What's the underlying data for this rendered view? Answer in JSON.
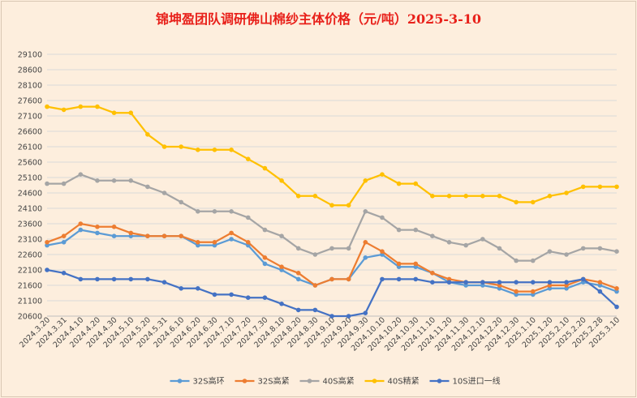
{
  "chart_data": {
    "type": "line",
    "title": "锦坤盈团队调研佛山棉纱主体价格（元/吨）2025-3-10",
    "y_ticks": [
      20600,
      21100,
      21600,
      22100,
      22600,
      23100,
      23600,
      24100,
      24600,
      25100,
      25600,
      26100,
      26600,
      27100,
      27600,
      28100,
      28600,
      29100
    ],
    "ylim": [
      20600,
      29100
    ],
    "grid": "horizontal",
    "legend_position": "bottom",
    "categories": [
      "2024.3.20",
      "2024.3.31",
      "2024.4.10",
      "2024.4.20",
      "2024.4.30",
      "2024.5.10",
      "2024.5.20",
      "2024.5.31",
      "2024.6.10",
      "2024.6.20",
      "2024.6.30",
      "2024.7.10",
      "2024.7.20",
      "2024.7.30",
      "2024.8.10",
      "2024.8.20",
      "2024.8.30",
      "2024.9.10",
      "2024.9.20",
      "2024.9.30",
      "2024.10.10",
      "2024.10.20",
      "2024.10.30",
      "2024.11.10",
      "2024.11.20",
      "2024.11.30",
      "2024.12.10",
      "2024.12.20",
      "2024.12.30",
      "2025.1.10",
      "2025.1.20",
      "2025.2.10",
      "2025.2.20",
      "2025.2.28",
      "2025.3.10"
    ],
    "series": [
      {
        "name": "32S高环",
        "color": "#5b9bd5",
        "values": [
          22900,
          23000,
          23400,
          23300,
          23200,
          23200,
          23200,
          23200,
          23200,
          22900,
          22900,
          23100,
          22900,
          22300,
          22100,
          21800,
          21600,
          21800,
          21800,
          22500,
          22600,
          22200,
          22200,
          22000,
          21700,
          21600,
          21600,
          21500,
          21300,
          21300,
          21500,
          21500,
          21700,
          21600,
          21400
        ]
      },
      {
        "name": "32S高紧",
        "color": "#ed7d31",
        "values": [
          23000,
          23200,
          23600,
          23500,
          23500,
          23300,
          23200,
          23200,
          23200,
          23000,
          23000,
          23300,
          23000,
          22500,
          22200,
          22000,
          21600,
          21800,
          21800,
          23000,
          22700,
          22300,
          22300,
          22000,
          21800,
          21700,
          21700,
          21600,
          21400,
          21400,
          21600,
          21600,
          21800,
          21700,
          21500
        ]
      },
      {
        "name": "40S高紧",
        "color": "#a5a5a5",
        "values": [
          24900,
          24900,
          25200,
          25000,
          25000,
          25000,
          24800,
          24600,
          24300,
          24000,
          24000,
          24000,
          23800,
          23400,
          23200,
          22800,
          22600,
          22800,
          22800,
          24000,
          23800,
          23400,
          23400,
          23200,
          23000,
          22900,
          23100,
          22800,
          22400,
          22400,
          22700,
          22600,
          22800,
          22800,
          22700
        ]
      },
      {
        "name": "40S精紧",
        "color": "#ffc000",
        "values": [
          27400,
          27300,
          27400,
          27400,
          27200,
          27200,
          26500,
          26100,
          26100,
          26000,
          26000,
          26000,
          25700,
          25400,
          25000,
          24500,
          24500,
          24200,
          24200,
          25000,
          25200,
          24900,
          24900,
          24500,
          24500,
          24500,
          24500,
          24500,
          24300,
          24300,
          24500,
          24600,
          24800,
          24800,
          24800
        ]
      },
      {
        "name": "10S进口一线",
        "color": "#4472c4",
        "values": [
          22100,
          22000,
          21800,
          21800,
          21800,
          21800,
          21800,
          21700,
          21500,
          21500,
          21300,
          21300,
          21200,
          21200,
          21000,
          20800,
          20800,
          20600,
          20600,
          20700,
          21800,
          21800,
          21800,
          21700,
          21700,
          21700,
          21700,
          21700,
          21700,
          21700,
          21700,
          21700,
          21800,
          21400,
          20900
        ]
      }
    ]
  }
}
